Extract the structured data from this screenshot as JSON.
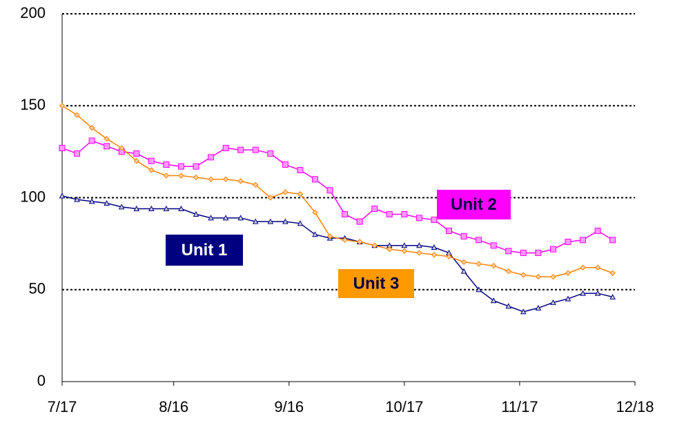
{
  "chart_data": {
    "type": "line",
    "x": [
      "7/17",
      "7/21",
      "7/25",
      "7/29",
      "8/2",
      "8/6",
      "8/10",
      "8/14",
      "8/18",
      "8/22",
      "8/26",
      "8/30",
      "9/3",
      "9/7",
      "9/11",
      "9/15",
      "9/19",
      "9/23",
      "9/27",
      "10/1",
      "10/5",
      "10/9",
      "10/13",
      "10/17",
      "10/21",
      "10/25",
      "10/29",
      "11/2",
      "11/6",
      "11/10",
      "11/14",
      "11/18",
      "11/22",
      "11/26",
      "11/30",
      "12/4",
      "12/8",
      "12/12"
    ],
    "series": [
      {
        "name": "Unit 1",
        "color": "#000080",
        "values": [
          101,
          99,
          98,
          97,
          95,
          94,
          94,
          94,
          94,
          91,
          89,
          89,
          89,
          87,
          87,
          87,
          86,
          80,
          78,
          78,
          76,
          74,
          74,
          74,
          74,
          73,
          70,
          60,
          50,
          44,
          41,
          38,
          40,
          43,
          45,
          48,
          48,
          46
        ]
      },
      {
        "name": "Unit 2",
        "color": "#ff00ff",
        "values": [
          127,
          124,
          131,
          128,
          125,
          124,
          120,
          118,
          117,
          117,
          122,
          127,
          126,
          126,
          124,
          118,
          115,
          110,
          104,
          91,
          87,
          94,
          91,
          91,
          89,
          88,
          82,
          79,
          77,
          74,
          71,
          70,
          70,
          72,
          76,
          77,
          82,
          77
        ]
      },
      {
        "name": "Unit 3",
        "color": "#ff8000",
        "values": [
          150,
          145,
          138,
          132,
          127,
          120,
          115,
          112,
          112,
          111,
          110,
          110,
          109,
          107,
          100,
          103,
          102,
          92,
          79,
          77,
          76,
          74,
          72,
          71,
          70,
          69,
          68,
          65,
          64,
          63,
          60,
          58,
          57,
          57,
          59,
          62,
          62,
          59
        ]
      }
    ],
    "xlim": [
      "7/17",
      "12/18"
    ],
    "xticks": [
      "7/17",
      "8/16",
      "9/16",
      "10/17",
      "11/17",
      "12/18"
    ],
    "ylim": [
      0,
      200
    ],
    "yticks": [
      0,
      50,
      100,
      150,
      200
    ],
    "grid": true
  }
}
